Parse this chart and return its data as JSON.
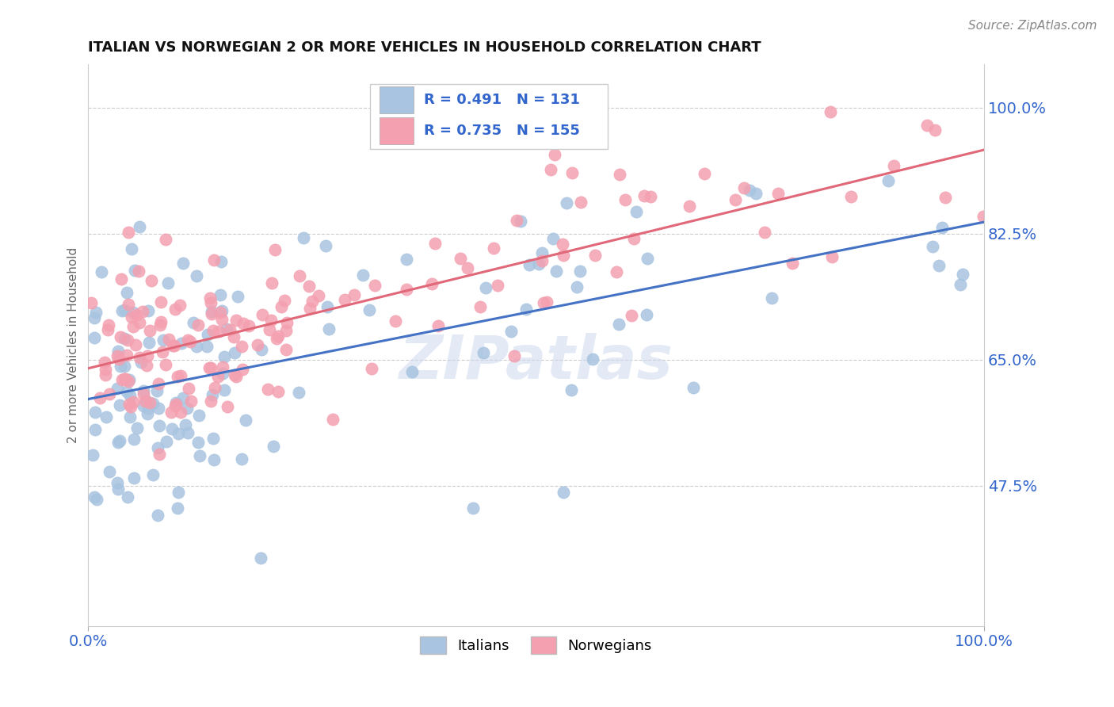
{
  "title": "ITALIAN VS NORWEGIAN 2 OR MORE VEHICLES IN HOUSEHOLD CORRELATION CHART",
  "source": "Source: ZipAtlas.com",
  "ylabel": "2 or more Vehicles in Household",
  "xlim": [
    0.0,
    100.0
  ],
  "ylim": [
    28.0,
    106.0
  ],
  "x_tick_labels": [
    "0.0%",
    "100.0%"
  ],
  "y_ticks_right": [
    47.5,
    65.0,
    82.5,
    100.0
  ],
  "y_tick_labels_right": [
    "47.5%",
    "65.0%",
    "82.5%",
    "100.0%"
  ],
  "italian_color": "#a8c4e0",
  "norwegian_color": "#f4a0b0",
  "italian_line_color": "#4472c4",
  "norwegian_line_color": "#e06878",
  "R_italian": 0.491,
  "N_italian": 131,
  "R_norwegian": 0.735,
  "N_norwegian": 155,
  "legend_label_italian": "Italians",
  "legend_label_norwegian": "Norwegians",
  "background_color": "#ffffff",
  "grid_color": "#cccccc",
  "watermark_text": "ZIPatlas",
  "title_color": "#111111",
  "axis_tick_color": "#3366cc",
  "ylabel_color": "#666666"
}
